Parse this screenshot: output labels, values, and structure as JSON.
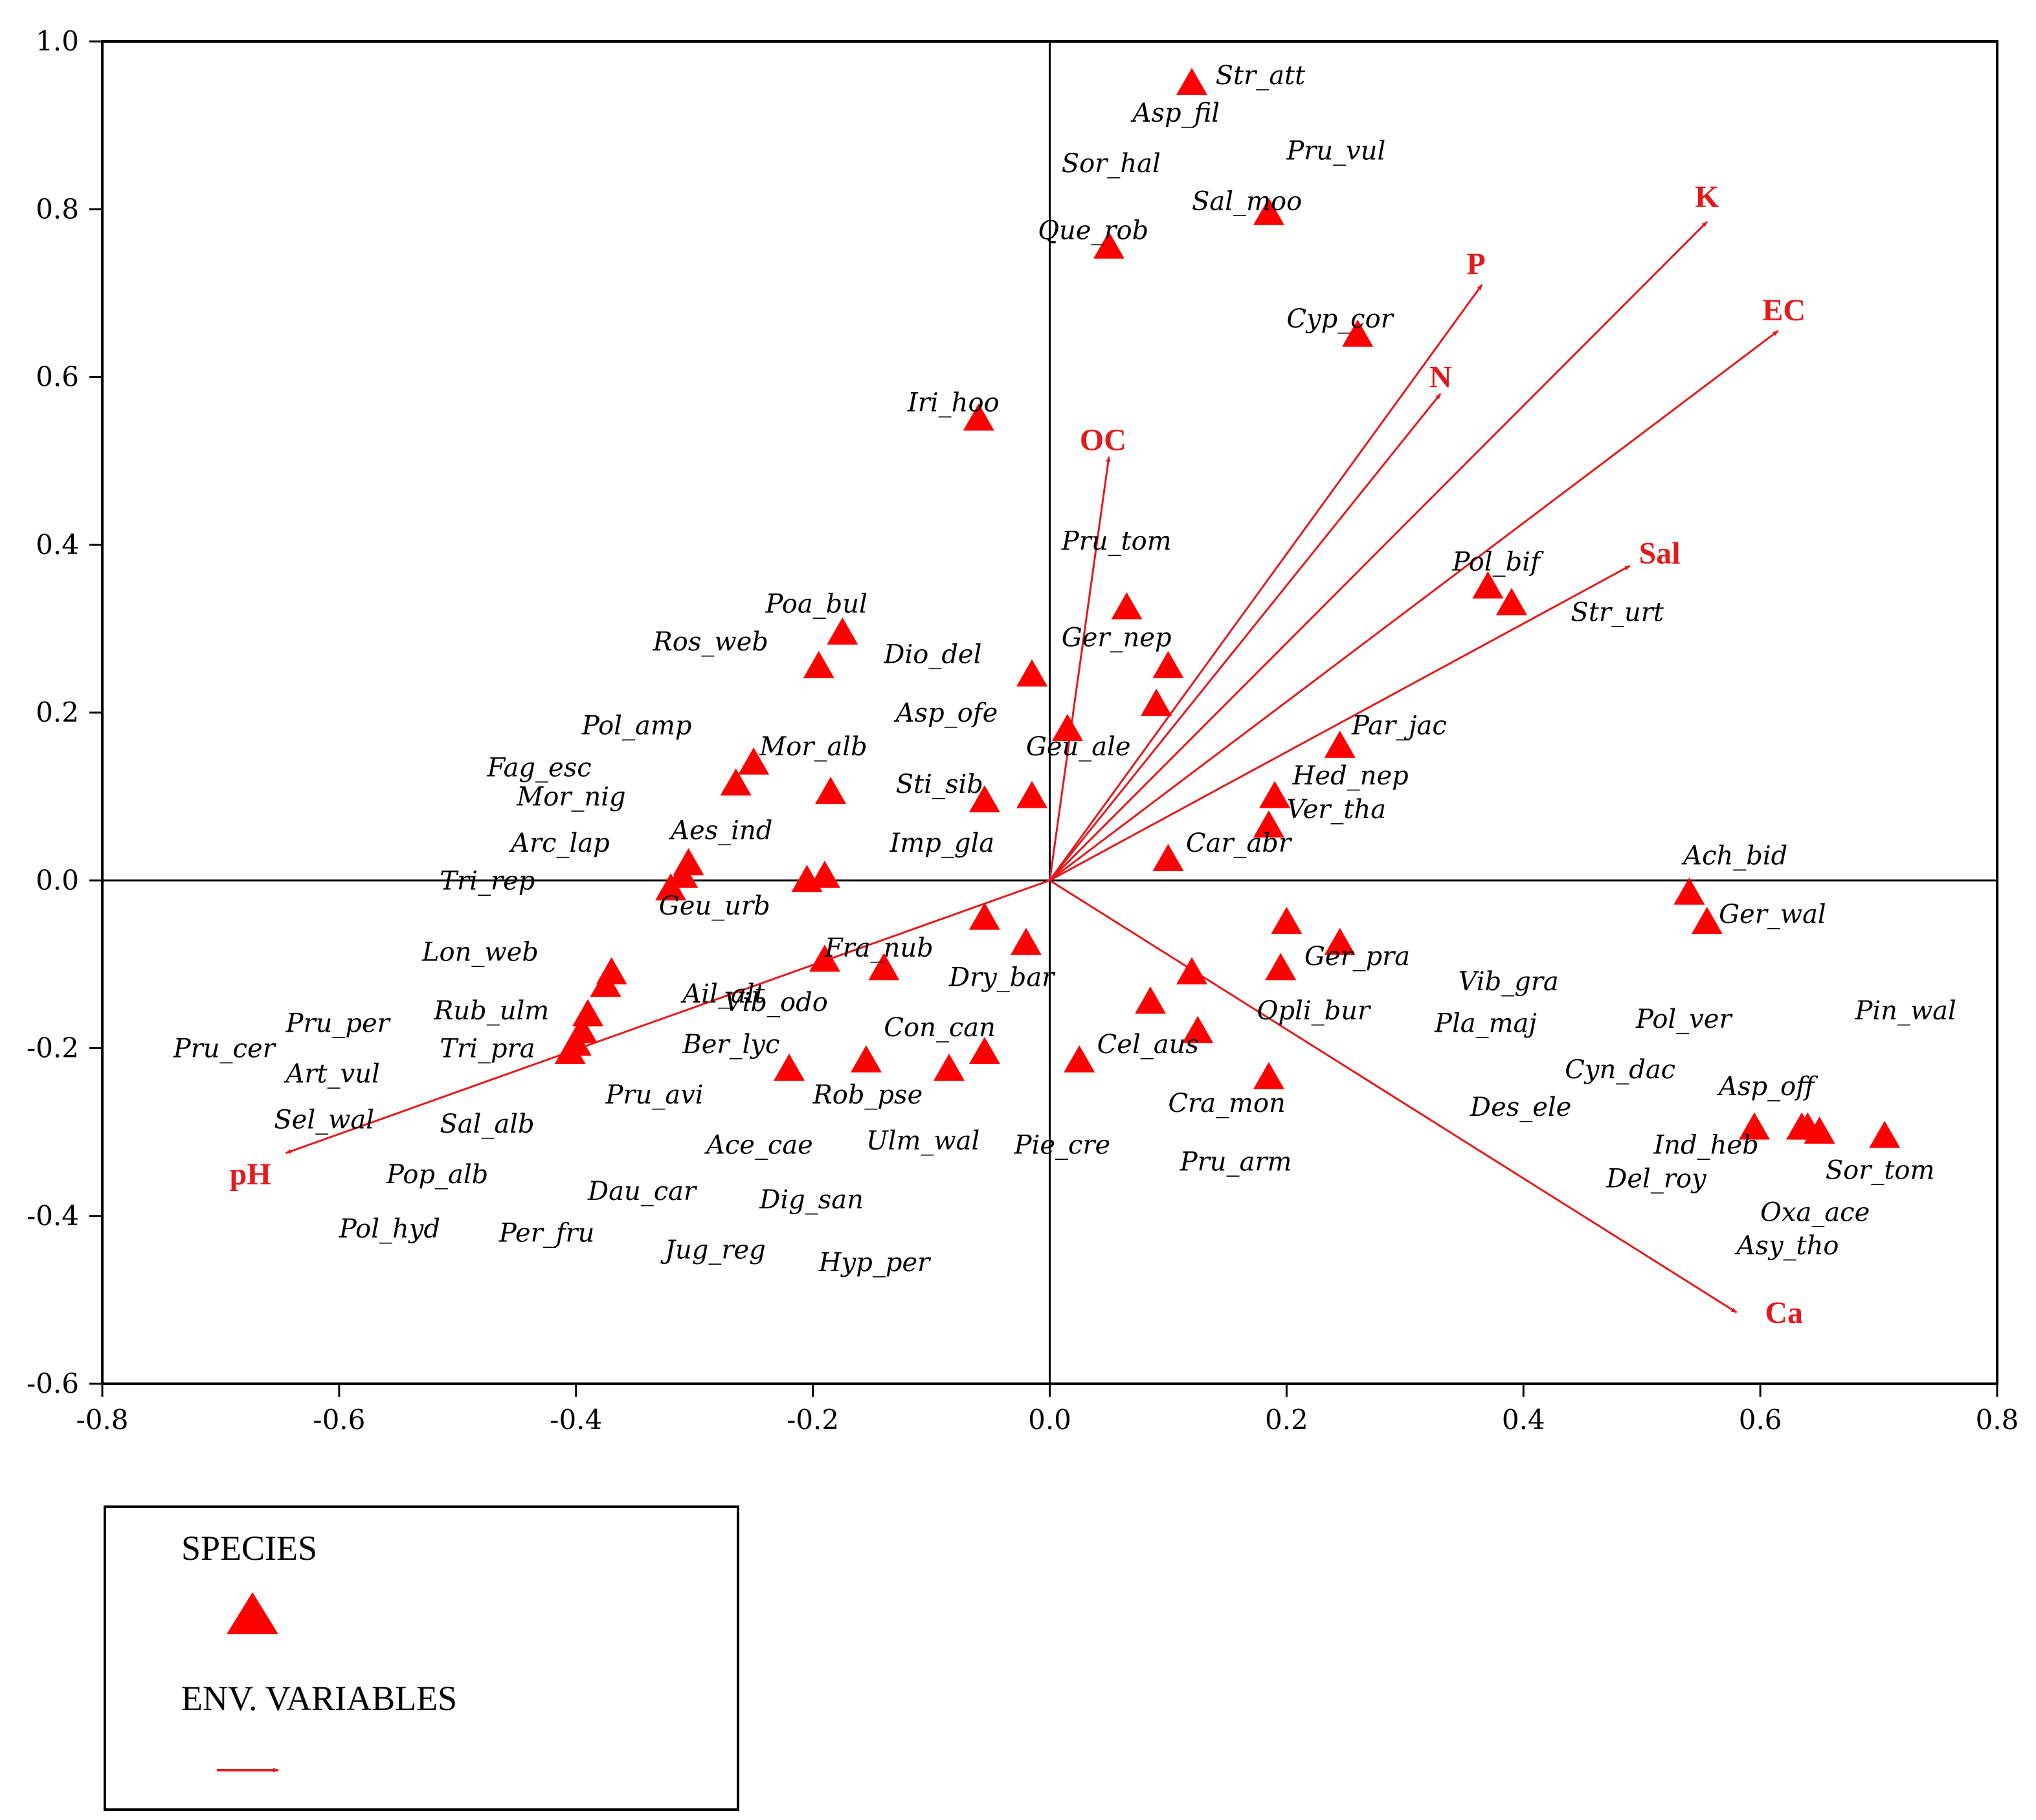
{
  "chart_data": {
    "type": "scatter",
    "title": "",
    "xlabel": "",
    "ylabel": "",
    "xlim": [
      -0.8,
      0.8
    ],
    "ylim": [
      -0.6,
      1.0
    ],
    "xticks": [
      "-0.8",
      "-0.6",
      "-0.4",
      "-0.2",
      "0.0",
      "0.2",
      "0.4",
      "0.6",
      "0.8"
    ],
    "yticks": [
      "1.0",
      "0.8",
      "0.6",
      "0.4",
      "0.2",
      "0.0",
      "-0.2",
      "-0.4",
      "-0.6"
    ],
    "colors": {
      "marker": "#ff0000",
      "arrow": "#e31a1c",
      "axis": "#000000"
    },
    "species_markers": [
      [
        0.12,
        0.95
      ],
      [
        0.185,
        0.795
      ],
      [
        0.05,
        0.755
      ],
      [
        0.26,
        0.65
      ],
      [
        -0.06,
        0.55
      ],
      [
        0.065,
        0.325
      ],
      [
        0.37,
        0.35
      ],
      [
        0.39,
        0.33
      ],
      [
        -0.175,
        0.295
      ],
      [
        -0.195,
        0.255
      ],
      [
        -0.015,
        0.245
      ],
      [
        0.1,
        0.255
      ],
      [
        0.09,
        0.21
      ],
      [
        0.015,
        0.18
      ],
      [
        -0.25,
        0.14
      ],
      [
        -0.265,
        0.115
      ],
      [
        -0.185,
        0.105
      ],
      [
        -0.055,
        0.095
      ],
      [
        -0.015,
        0.1
      ],
      [
        0.245,
        0.16
      ],
      [
        0.19,
        0.1
      ],
      [
        0.185,
        0.065
      ],
      [
        0.1,
        0.025
      ],
      [
        -0.305,
        0.02
      ],
      [
        -0.31,
        0.005
      ],
      [
        -0.19,
        0.005
      ],
      [
        -0.205,
        0.0
      ],
      [
        -0.32,
        -0.01
      ],
      [
        0.54,
        -0.015
      ],
      [
        0.555,
        -0.05
      ],
      [
        -0.055,
        -0.045
      ],
      [
        0.2,
        -0.05
      ],
      [
        -0.02,
        -0.075
      ],
      [
        0.245,
        -0.075
      ],
      [
        -0.37,
        -0.11
      ],
      [
        -0.375,
        -0.125
      ],
      [
        -0.19,
        -0.095
      ],
      [
        -0.14,
        -0.105
      ],
      [
        0.12,
        -0.11
      ],
      [
        0.195,
        -0.105
      ],
      [
        -0.39,
        -0.16
      ],
      [
        -0.395,
        -0.18
      ],
      [
        -0.4,
        -0.195
      ],
      [
        -0.405,
        -0.205
      ],
      [
        0.085,
        -0.145
      ],
      [
        0.125,
        -0.18
      ],
      [
        -0.055,
        -0.205
      ],
      [
        -0.155,
        -0.215
      ],
      [
        0.025,
        -0.215
      ],
      [
        -0.22,
        -0.225
      ],
      [
        -0.085,
        -0.225
      ],
      [
        0.185,
        -0.235
      ],
      [
        0.595,
        -0.295
      ],
      [
        0.635,
        -0.295
      ],
      [
        0.65,
        -0.3
      ],
      [
        0.705,
        -0.305
      ],
      [
        0.64,
        -0.295
      ]
    ],
    "species_labels": [
      {
        "name": "Str_att",
        "x": 0.14,
        "y": 0.96
      },
      {
        "name": "Asp_fil",
        "x": 0.07,
        "y": 0.915
      },
      {
        "name": "Pru_vul",
        "x": 0.2,
        "y": 0.87
      },
      {
        "name": "Sor_hal",
        "x": 0.01,
        "y": 0.855
      },
      {
        "name": "Sal_moo",
        "x": 0.12,
        "y": 0.81
      },
      {
        "name": "Que_rob",
        "x": -0.01,
        "y": 0.775
      },
      {
        "name": "Cyp_cor",
        "x": 0.2,
        "y": 0.67
      },
      {
        "name": "Iri_hoo",
        "x": -0.12,
        "y": 0.57
      },
      {
        "name": "Pru_tom",
        "x": 0.01,
        "y": 0.405
      },
      {
        "name": "Pol_bif",
        "x": 0.34,
        "y": 0.38
      },
      {
        "name": "Str_urt",
        "x": 0.44,
        "y": 0.32
      },
      {
        "name": "Poa_bul",
        "x": -0.24,
        "y": 0.33
      },
      {
        "name": "Ros_web",
        "x": -0.335,
        "y": 0.285
      },
      {
        "name": "Dio_del",
        "x": -0.14,
        "y": 0.27
      },
      {
        "name": "Ger_nep",
        "x": 0.01,
        "y": 0.29
      },
      {
        "name": "Asp_ofe",
        "x": -0.13,
        "y": 0.2
      },
      {
        "name": "Pol_amp",
        "x": -0.395,
        "y": 0.185
      },
      {
        "name": "Mor_alb",
        "x": -0.245,
        "y": 0.16
      },
      {
        "name": "Geu_ale",
        "x": -0.02,
        "y": 0.16
      },
      {
        "name": "Par_jac",
        "x": 0.255,
        "y": 0.185
      },
      {
        "name": "Fag_esc",
        "x": -0.475,
        "y": 0.135
      },
      {
        "name": "Hed_nep",
        "x": 0.205,
        "y": 0.125
      },
      {
        "name": "Sti_sib",
        "x": -0.13,
        "y": 0.115
      },
      {
        "name": "Mor_nig",
        "x": -0.45,
        "y": 0.1
      },
      {
        "name": "Ver_tha",
        "x": 0.2,
        "y": 0.085
      },
      {
        "name": "Aes_ind",
        "x": -0.32,
        "y": 0.06
      },
      {
        "name": "Arc_lap",
        "x": -0.455,
        "y": 0.045
      },
      {
        "name": "Car_abr",
        "x": 0.115,
        "y": 0.045
      },
      {
        "name": "Imp_gla",
        "x": -0.135,
        "y": 0.045
      },
      {
        "name": "Ach_bid",
        "x": 0.535,
        "y": 0.03
      },
      {
        "name": "Tri_rep",
        "x": -0.515,
        "y": 0.0
      },
      {
        "name": "Geu_urb",
        "x": -0.33,
        "y": -0.03
      },
      {
        "name": "Ger_wal",
        "x": 0.565,
        "y": -0.04
      },
      {
        "name": "Lon_web",
        "x": -0.53,
        "y": -0.085
      },
      {
        "name": "Fra_nub",
        "x": -0.19,
        "y": -0.08
      },
      {
        "name": "Ger_pra",
        "x": 0.215,
        "y": -0.09
      },
      {
        "name": "Dry_bar",
        "x": -0.085,
        "y": -0.115
      },
      {
        "name": "Vib_gra",
        "x": 0.345,
        "y": -0.12
      },
      {
        "name": "Ail_alt",
        "x": -0.31,
        "y": -0.135
      },
      {
        "name": "Vib_odo",
        "x": -0.275,
        "y": -0.145
      },
      {
        "name": "Pru_per",
        "x": -0.645,
        "y": -0.17
      },
      {
        "name": "Rub_ulm",
        "x": -0.52,
        "y": -0.155
      },
      {
        "name": "Opli_bur",
        "x": 0.175,
        "y": -0.155
      },
      {
        "name": "Pla_maj",
        "x": 0.325,
        "y": -0.17
      },
      {
        "name": "Pol_ver",
        "x": 0.495,
        "y": -0.165
      },
      {
        "name": "Pin_wal",
        "x": 0.68,
        "y": -0.155
      },
      {
        "name": "Con_can",
        "x": -0.14,
        "y": -0.175
      },
      {
        "name": "Pru_cer",
        "x": -0.74,
        "y": -0.2
      },
      {
        "name": "Tri_pra",
        "x": -0.515,
        "y": -0.2
      },
      {
        "name": "Ber_lyc",
        "x": -0.31,
        "y": -0.195
      },
      {
        "name": "Cel_aus",
        "x": 0.04,
        "y": -0.195
      },
      {
        "name": "Art_vul",
        "x": -0.645,
        "y": -0.23
      },
      {
        "name": "Cyn_dac",
        "x": 0.435,
        "y": -0.225
      },
      {
        "name": "Asp_off",
        "x": 0.565,
        "y": -0.245
      },
      {
        "name": "Pru_avi",
        "x": -0.375,
        "y": -0.255
      },
      {
        "name": "Rob_pse",
        "x": -0.2,
        "y": -0.255
      },
      {
        "name": "Cra_mon",
        "x": 0.1,
        "y": -0.265
      },
      {
        "name": "Des_ele",
        "x": 0.355,
        "y": -0.27
      },
      {
        "name": "Sel_wal",
        "x": -0.655,
        "y": -0.285
      },
      {
        "name": "Sal_alb",
        "x": -0.515,
        "y": -0.29
      },
      {
        "name": "Ulm_wal",
        "x": -0.155,
        "y": -0.31
      },
      {
        "name": "Pie_cre",
        "x": -0.03,
        "y": -0.315
      },
      {
        "name": "Ace_cae",
        "x": -0.29,
        "y": -0.315
      },
      {
        "name": "Ind_heb",
        "x": 0.51,
        "y": -0.315
      },
      {
        "name": "Pru_arm",
        "x": 0.11,
        "y": -0.335
      },
      {
        "name": "Sor_tom",
        "x": 0.655,
        "y": -0.345
      },
      {
        "name": "Pop_alb",
        "x": -0.56,
        "y": -0.35
      },
      {
        "name": "Del_roy",
        "x": 0.47,
        "y": -0.355
      },
      {
        "name": "Dau_car",
        "x": -0.39,
        "y": -0.37
      },
      {
        "name": "Dig_san",
        "x": -0.245,
        "y": -0.38
      },
      {
        "name": "Oxa_ace",
        "x": 0.6,
        "y": -0.395
      },
      {
        "name": "Pol_hyd",
        "x": -0.6,
        "y": -0.415
      },
      {
        "name": "Per_fru",
        "x": -0.465,
        "y": -0.42
      },
      {
        "name": "Jug_reg",
        "x": -0.325,
        "y": -0.44
      },
      {
        "name": "Asy_tho",
        "x": 0.58,
        "y": -0.435
      },
      {
        "name": "Hyp_per",
        "x": -0.195,
        "y": -0.455
      }
    ],
    "env_variables": [
      {
        "name": "K",
        "x": 0.555,
        "y": 0.785,
        "lx": 0.555,
        "ly": 0.815
      },
      {
        "name": "P",
        "x": 0.365,
        "y": 0.71,
        "lx": 0.36,
        "ly": 0.735
      },
      {
        "name": "EC",
        "x": 0.615,
        "y": 0.655,
        "lx": 0.62,
        "ly": 0.68
      },
      {
        "name": "N",
        "x": 0.33,
        "y": 0.58,
        "lx": 0.33,
        "ly": 0.6
      },
      {
        "name": "OC",
        "x": 0.05,
        "y": 0.505,
        "lx": 0.045,
        "ly": 0.525
      },
      {
        "name": "Sal",
        "x": 0.49,
        "y": 0.375,
        "lx": 0.515,
        "ly": 0.39
      },
      {
        "name": "pH",
        "x": -0.645,
        "y": -0.325,
        "lx": -0.675,
        "ly": -0.35
      },
      {
        "name": "Ca",
        "x": 0.58,
        "y": -0.515,
        "lx": 0.62,
        "ly": -0.515
      }
    ]
  },
  "legend": {
    "species_label": "SPECIES",
    "env_label": "ENV. VARIABLES"
  }
}
